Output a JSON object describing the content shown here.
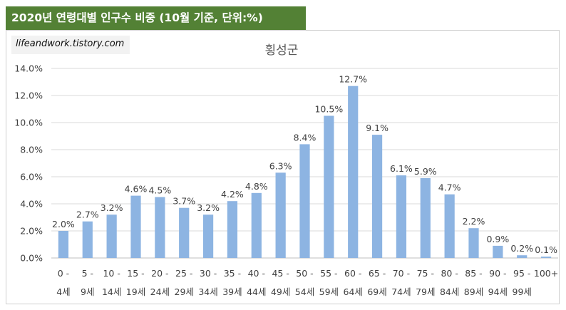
{
  "header": {
    "title": "2020년 연령대별 인구수 비중 (10월 기준, 단위:%)"
  },
  "watermark": {
    "text": "lifeandwork.tistory.com"
  },
  "colors": {
    "header_bg": "#538135",
    "bar": "#8db4e2",
    "grid": "#d9d9d9",
    "text": "#404040"
  },
  "chart_data": {
    "type": "bar",
    "title": "횡성군",
    "xlabel": "",
    "ylabel": "",
    "ylim": [
      0,
      14
    ],
    "yticks": [
      "0.0%",
      "2.0%",
      "4.0%",
      "6.0%",
      "8.0%",
      "10.0%",
      "12.0%",
      "14.0%"
    ],
    "grid": true,
    "categories": [
      [
        "0 -",
        "4세"
      ],
      [
        "5 -",
        "9세"
      ],
      [
        "10 -",
        "14세"
      ],
      [
        "15 -",
        "19세"
      ],
      [
        "20 -",
        "24세"
      ],
      [
        "25 -",
        "29세"
      ],
      [
        "30 -",
        "34세"
      ],
      [
        "35 -",
        "39세"
      ],
      [
        "40 -",
        "44세"
      ],
      [
        "45 -",
        "49세"
      ],
      [
        "50 -",
        "54세"
      ],
      [
        "55 -",
        "59세"
      ],
      [
        "60 -",
        "64세"
      ],
      [
        "65 -",
        "69세"
      ],
      [
        "70 -",
        "74세"
      ],
      [
        "75 -",
        "79세"
      ],
      [
        "80 -",
        "84세"
      ],
      [
        "85 -",
        "89세"
      ],
      [
        "90 -",
        "94세"
      ],
      [
        "95 -",
        "99세"
      ],
      [
        "100+",
        ""
      ]
    ],
    "values": [
      2.0,
      2.7,
      3.2,
      4.6,
      4.5,
      3.7,
      3.2,
      4.2,
      4.8,
      6.3,
      8.4,
      10.5,
      12.7,
      9.1,
      6.1,
      5.9,
      4.7,
      2.2,
      0.9,
      0.2,
      0.1
    ],
    "data_labels": [
      "2.0%",
      "2.7%",
      "3.2%",
      "4.6%",
      "4.5%",
      "3.7%",
      "3.2%",
      "4.2%",
      "4.8%",
      "6.3%",
      "8.4%",
      "10.5%",
      "12.7%",
      "9.1%",
      "6.1%",
      "5.9%",
      "4.7%",
      "2.2%",
      "0.9%",
      "0.2%",
      "0.1%"
    ]
  }
}
